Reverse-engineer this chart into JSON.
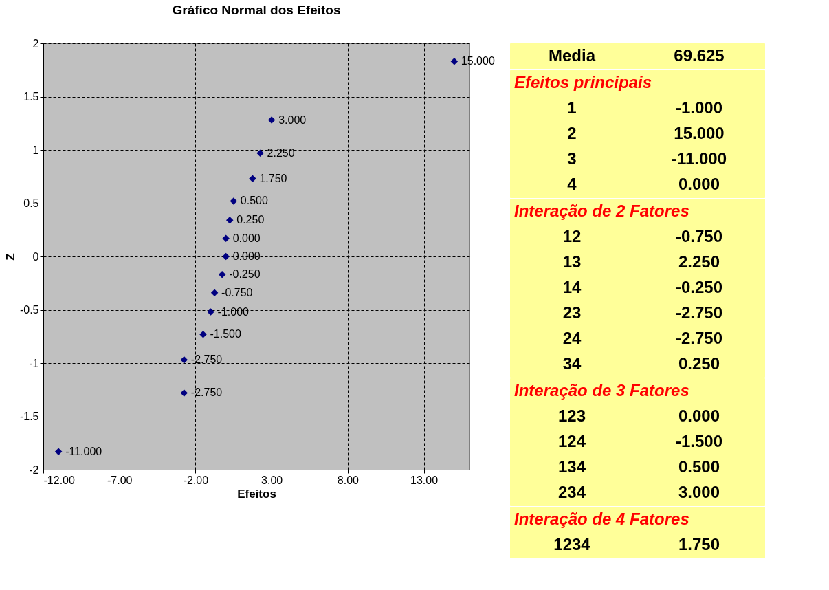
{
  "chart_data": [
    {
      "type": "scatter",
      "title": "Gráfico Normal dos Efeitos",
      "xlabel": "Efeitos",
      "ylabel": "Z",
      "x": [
        -11.0,
        -2.75,
        -2.75,
        -1.5,
        -1.0,
        -0.75,
        -0.25,
        0.0,
        0.0,
        0.25,
        0.5,
        1.75,
        2.25,
        3.0,
        15.0
      ],
      "series": [
        {
          "color": "#000080",
          "values": [
            -1.83,
            -1.28,
            -0.97,
            -0.73,
            -0.52,
            -0.34,
            -0.17,
            0.0,
            0.17,
            0.34,
            0.52,
            0.73,
            0.97,
            1.28,
            1.83
          ]
        }
      ],
      "annotations": [
        {
          "text": "-11.000",
          "x": -11.0,
          "y": -1.83
        },
        {
          "text": "-2.750",
          "x": -2.75,
          "y": -1.28
        },
        {
          "text": "-2.750",
          "x": -2.75,
          "y": -0.97
        },
        {
          "text": "-1.500",
          "x": -1.5,
          "y": -0.73
        },
        {
          "text": "-1.000",
          "x": -1.0,
          "y": -0.52
        },
        {
          "text": "-0.750",
          "x": -0.75,
          "y": -0.34
        },
        {
          "text": "-0.250",
          "x": -0.25,
          "y": -0.17
        },
        {
          "text": "0.000",
          "x": 0.0,
          "y": 0.0
        },
        {
          "text": "0.000",
          "x": 0.0,
          "y": 0.17
        },
        {
          "text": "0.250",
          "x": 0.25,
          "y": 0.34
        },
        {
          "text": "0.500",
          "x": 0.5,
          "y": 0.52
        },
        {
          "text": "1.750",
          "x": 1.75,
          "y": 0.73
        },
        {
          "text": "2.250",
          "x": 2.25,
          "y": 0.97
        },
        {
          "text": "3.000",
          "x": 3.0,
          "y": 1.28
        },
        {
          "text": "15.000",
          "x": 15.0,
          "y": 1.83
        }
      ],
      "xlim": [
        -12,
        16
      ],
      "xticks": [
        {
          "value": -12,
          "label": "-12.00"
        },
        {
          "value": -7,
          "label": "-7.00"
        },
        {
          "value": -2,
          "label": "-2.00"
        },
        {
          "value": 3,
          "label": "3.00"
        },
        {
          "value": 8,
          "label": "8.00"
        },
        {
          "value": 13,
          "label": "13.00"
        }
      ],
      "ylim": [
        -2,
        2
      ],
      "yticks": [
        -2,
        -1.5,
        -1,
        -0.5,
        0,
        0.5,
        1,
        1.5,
        2
      ],
      "grid": true,
      "marker": "diamond"
    },
    {
      "type": "other",
      "annotations": [
        "Media",
        "69.625"
      ]
    },
    {
      "type": "other",
      "title": "Efeitos principais",
      "annotations": [
        "1",
        "-1.000",
        "2",
        "15.000",
        "3",
        "-11.000",
        "4",
        "0.000"
      ]
    },
    {
      "type": "other",
      "title": "Interação de 2 Fatores",
      "annotations": [
        "12",
        "-0.750",
        "13",
        "2.250",
        "14",
        "-0.250",
        "23",
        "-2.750",
        "24",
        "-2.750",
        "34",
        "0.250"
      ]
    },
    {
      "type": "other",
      "title": "Interação de 3 Fatores",
      "annotations": [
        "123",
        "0.000",
        "124",
        "-1.500",
        "134",
        "0.500",
        "234",
        "3.000"
      ]
    },
    {
      "type": "other",
      "title": "Interação de 4 Fatores",
      "annotations": [
        "1234",
        "1.750"
      ]
    }
  ]
}
